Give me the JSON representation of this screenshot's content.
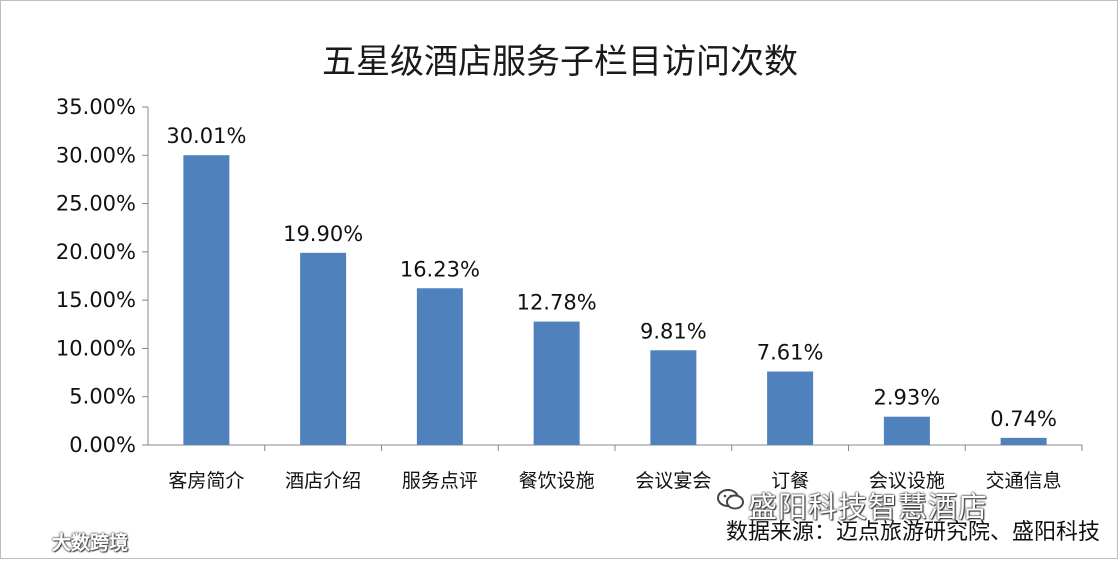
{
  "chart_data": {
    "type": "bar",
    "title": "五星级酒店服务子栏目访问次数",
    "categories": [
      "客房简介",
      "酒店介绍",
      "服务点评",
      "餐饮设施",
      "会议宴会",
      "订餐",
      "会议设施",
      "交通信息"
    ],
    "values": [
      30.01,
      19.9,
      16.23,
      12.78,
      9.81,
      7.61,
      2.93,
      0.74
    ],
    "data_labels": [
      "30.01%",
      "19.90%",
      "16.23%",
      "12.78%",
      "9.81%",
      "7.61%",
      "2.93%",
      "0.74%"
    ],
    "y_ticks": [
      "0.00%",
      "5.00%",
      "10.00%",
      "15.00%",
      "20.00%",
      "25.00%",
      "30.00%",
      "35.00%"
    ],
    "ylim": [
      0,
      35
    ],
    "grid": false,
    "legend": "none",
    "bar_color": "#4f81bd"
  },
  "source_note": "数据来源：迈点旅游研究院、盛阳科技",
  "watermark_brand": "盛阳科技智慧酒店",
  "watermark_corner": "大数跨境"
}
